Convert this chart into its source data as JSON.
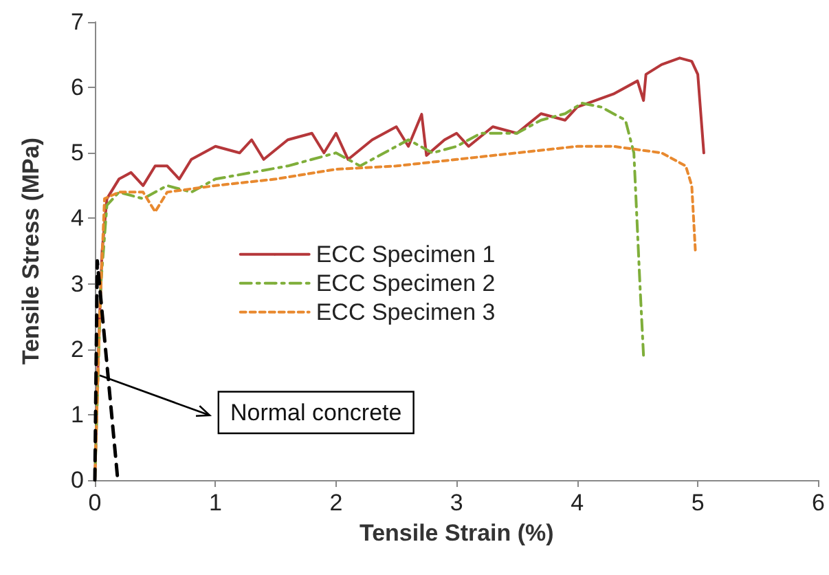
{
  "chart_data": {
    "type": "line",
    "xlabel": "Tensile Strain (%)",
    "ylabel": "Tensile Stress (MPa)",
    "xlim": [
      0,
      6
    ],
    "xticks": [
      0,
      1,
      2,
      3,
      4,
      5,
      6
    ],
    "ylim": [
      0,
      7
    ],
    "yticks": [
      0,
      1,
      2,
      3,
      4,
      5,
      6,
      7
    ],
    "grid": false,
    "legend": "center",
    "marker": "none",
    "annotations": [
      {
        "text": "Normal concrete",
        "x": 0.04,
        "y": 1.6
      }
    ],
    "series": [
      {
        "name": "ECC Specimen 1",
        "color": "#b5373a",
        "line_style": "solid",
        "x": [
          0,
          0.03,
          0.06,
          0.1,
          0.2,
          0.3,
          0.4,
          0.5,
          0.6,
          0.7,
          0.8,
          1.0,
          1.2,
          1.3,
          1.4,
          1.6,
          1.8,
          1.9,
          2.0,
          2.1,
          2.3,
          2.5,
          2.6,
          2.71,
          2.75,
          2.9,
          3.0,
          3.1,
          3.3,
          3.5,
          3.7,
          3.9,
          4.0,
          4.3,
          4.5,
          4.55,
          4.57,
          4.7,
          4.85,
          4.95,
          5.0,
          5.05
        ],
        "values": [
          0,
          2,
          3.5,
          4.3,
          4.6,
          4.7,
          4.5,
          4.8,
          4.8,
          4.6,
          4.9,
          5.1,
          5.0,
          5.2,
          4.9,
          5.2,
          5.3,
          5.0,
          5.3,
          4.9,
          5.2,
          5.4,
          5.1,
          5.59,
          4.96,
          5.2,
          5.3,
          5.1,
          5.4,
          5.3,
          5.6,
          5.5,
          5.7,
          5.9,
          6.1,
          5.8,
          6.2,
          6.35,
          6.45,
          6.4,
          6.2,
          5.0
        ]
      },
      {
        "name": "ECC Specimen 2",
        "color": "#7fae3a",
        "line_style": "dashed",
        "x": [
          0,
          0.05,
          0.1,
          0.2,
          0.4,
          0.6,
          0.8,
          1.0,
          1.3,
          1.6,
          1.8,
          2.0,
          2.2,
          2.4,
          2.6,
          2.8,
          3.0,
          3.2,
          3.5,
          3.7,
          3.9,
          4.04,
          4.2,
          4.4,
          4.47,
          4.52,
          4.55
        ],
        "values": [
          0,
          3,
          4.2,
          4.4,
          4.3,
          4.5,
          4.4,
          4.6,
          4.7,
          4.8,
          4.9,
          5.0,
          4.8,
          5.0,
          5.2,
          5.0,
          5.1,
          5.3,
          5.3,
          5.5,
          5.6,
          5.76,
          5.7,
          5.5,
          5.0,
          3.0,
          1.9
        ]
      },
      {
        "name": "ECC Specimen 3",
        "color": "#e8892f",
        "line_style": "dotted",
        "x": [
          0,
          0.04,
          0.08,
          0.2,
          0.4,
          0.5,
          0.6,
          1.0,
          1.5,
          2.0,
          2.5,
          3.0,
          3.5,
          4.0,
          4.3,
          4.5,
          4.7,
          4.9,
          4.95,
          4.98
        ],
        "values": [
          0,
          2.5,
          4.3,
          4.4,
          4.4,
          4.1,
          4.4,
          4.5,
          4.6,
          4.75,
          4.8,
          4.9,
          5.0,
          5.1,
          5.1,
          5.05,
          5.0,
          4.8,
          4.5,
          3.5
        ]
      },
      {
        "color": "#000000",
        "line_style": "dashed",
        "x": [
          0,
          0.02,
          0.19
        ],
        "values": [
          0,
          3.35,
          0
        ]
      }
    ]
  }
}
